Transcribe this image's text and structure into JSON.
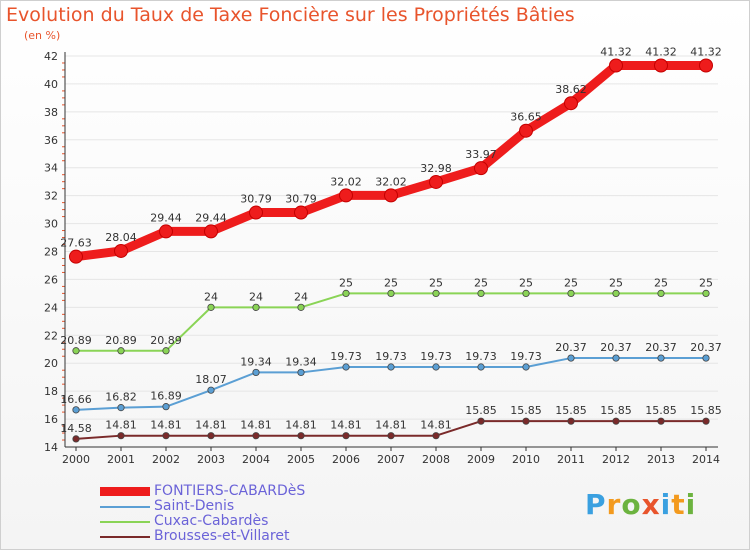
{
  "page": {
    "title": "Evolution du Taux de Taxe Foncière sur les Propriétés Bâties",
    "unit": "(en %)",
    "logo": [
      "P",
      "r",
      "o",
      "x",
      "i",
      "t",
      "i"
    ]
  },
  "chart_data": {
    "type": "line",
    "title": "Evolution du Taux de Taxe Foncière sur les Propriétés Bâties",
    "ylabel": "(en %)",
    "ylim": [
      14,
      42
    ],
    "yticks": [
      14,
      16,
      18,
      20,
      22,
      24,
      26,
      28,
      30,
      32,
      34,
      36,
      38,
      40,
      42
    ],
    "x": [
      "2000",
      "2001",
      "2002",
      "2003",
      "2004",
      "2005",
      "2006",
      "2007",
      "2008",
      "2009",
      "2010",
      "2011",
      "2012",
      "2013",
      "2014"
    ],
    "series": [
      {
        "name": "FONTIERS-CABARDèS",
        "color": "#ee1c1c",
        "values": [
          27.63,
          28.04,
          29.44,
          29.44,
          30.79,
          30.79,
          32.02,
          32.02,
          32.98,
          33.97,
          36.65,
          38.62,
          41.32,
          41.32,
          41.32
        ],
        "labels": [
          "27.63",
          "28.04",
          "29.44",
          "29.44",
          "30.79",
          "30.79",
          "32.02",
          "32.02",
          "32.98",
          "33.97",
          "36.65",
          "38.62",
          "41.32",
          "41.32",
          "41.32"
        ]
      },
      {
        "name": "Saint-Denis",
        "color": "#5b9fd4",
        "values": [
          16.66,
          16.82,
          16.89,
          18.07,
          19.34,
          19.34,
          19.73,
          19.73,
          19.73,
          19.73,
          19.73,
          20.37,
          20.37,
          20.37,
          20.37
        ],
        "labels": [
          "16.66",
          "16.82",
          "16.89",
          "18.07",
          "19.34",
          "19.34",
          "19.73",
          "19.73",
          "19.73",
          "19.73",
          "19.73",
          "20.37",
          "20.37",
          "20.37",
          "20.37"
        ]
      },
      {
        "name": "Cuxac-Cabardès",
        "color": "#8ad456",
        "values": [
          20.89,
          20.89,
          20.89,
          24,
          24,
          24,
          25,
          25,
          25,
          25,
          25,
          25,
          25,
          25,
          25
        ],
        "labels": [
          "20.89",
          "20.89",
          "20.89",
          "24",
          "24",
          "24",
          "25",
          "25",
          "25",
          "25",
          "25",
          "25",
          "25",
          "25",
          "25"
        ]
      },
      {
        "name": "Brousses-et-Villaret",
        "color": "#7a2a2a",
        "values": [
          14.58,
          14.81,
          14.81,
          14.81,
          14.81,
          14.81,
          14.81,
          14.81,
          14.81,
          15.85,
          15.85,
          15.85,
          15.85,
          15.85,
          15.85
        ],
        "labels": [
          "14.58",
          "14.81",
          "14.81",
          "14.81",
          "14.81",
          "14.81",
          "14.81",
          "14.81",
          "14.81",
          "15.85",
          "15.85",
          "15.85",
          "15.85",
          "15.85",
          "15.85"
        ]
      }
    ]
  }
}
